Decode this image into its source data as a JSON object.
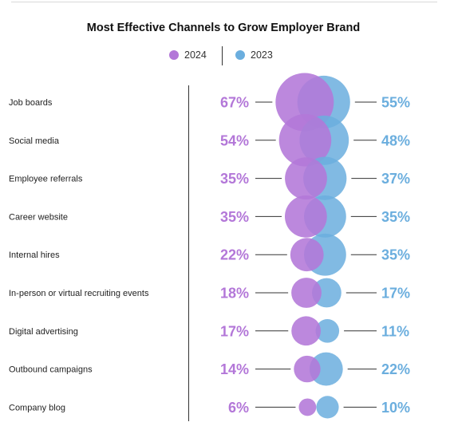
{
  "colors": {
    "series_2024": "#b377d8",
    "series_2023": "#6baede",
    "text": "#222222",
    "line": "#333333"
  },
  "chart_data": {
    "type": "bubble",
    "title": "Most Effective Channels to Grow Employer Brand",
    "legend_position": "top-center",
    "categories": [
      "Job boards",
      "Social media",
      "Employee referrals",
      "Career website",
      "Internal hires",
      "In-person or virtual recruiting events",
      "Digital advertising",
      "Outbound campaigns",
      "Company blog"
    ],
    "series": [
      {
        "name": "2024",
        "values": [
          67,
          54,
          35,
          35,
          22,
          18,
          17,
          14,
          6
        ],
        "labels": [
          "67%",
          "54%",
          "35%",
          "35%",
          "22%",
          "18%",
          "17%",
          "14%",
          "6%"
        ]
      },
      {
        "name": "2023",
        "values": [
          55,
          48,
          37,
          35,
          35,
          17,
          11,
          22,
          10
        ],
        "labels": [
          "55%",
          "48%",
          "37%",
          "35%",
          "35%",
          "17%",
          "11%",
          "22%",
          "10%"
        ]
      }
    ],
    "unit": "%"
  }
}
